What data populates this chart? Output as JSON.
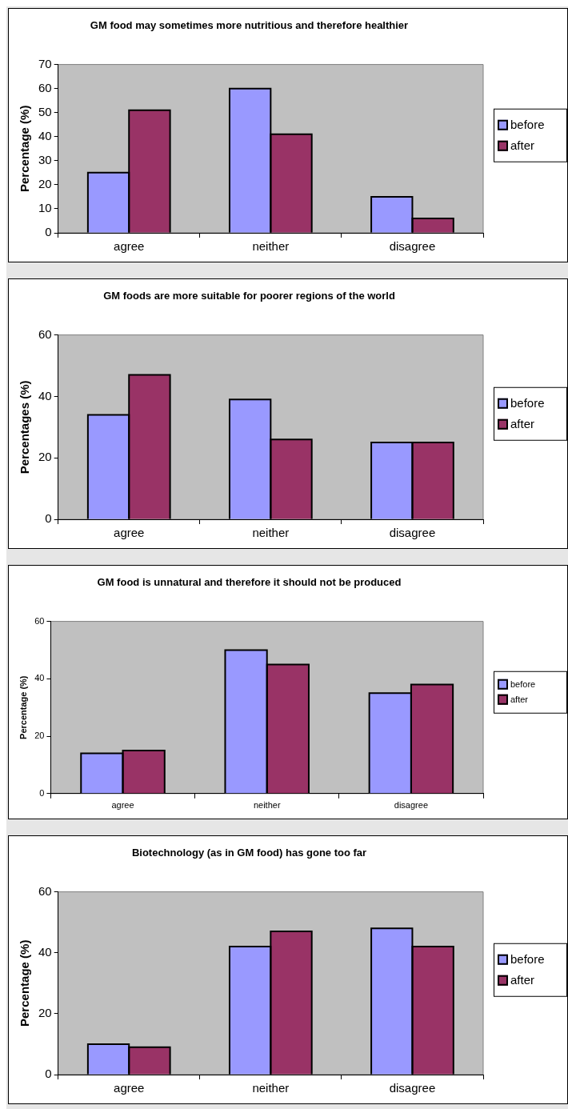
{
  "chart_data": [
    {
      "type": "bar",
      "title": "GM food may sometimes more nutritious and therefore healthier",
      "ylabel": "Percentage (%)",
      "categories": [
        "agree",
        "neither",
        "disagree"
      ],
      "series": [
        {
          "name": "before",
          "color": "#9999ff",
          "values": [
            25,
            60,
            15
          ]
        },
        {
          "name": "after",
          "color": "#993366",
          "values": [
            51,
            41,
            6
          ]
        }
      ],
      "ylim": [
        0,
        70
      ],
      "yticks": [
        0,
        10,
        20,
        30,
        40,
        50,
        60,
        70
      ],
      "grid": false,
      "legend": "right"
    },
    {
      "type": "bar",
      "title": "GM foods are more suitable for poorer regions of the world",
      "ylabel": "Percentages (%)",
      "categories": [
        "agree",
        "neither",
        "disagree"
      ],
      "series": [
        {
          "name": "before",
          "color": "#9999ff",
          "values": [
            34,
            39,
            25
          ]
        },
        {
          "name": "after",
          "color": "#993366",
          "values": [
            47,
            26,
            25
          ]
        }
      ],
      "ylim": [
        0,
        60
      ],
      "yticks": [
        0,
        20,
        40,
        60
      ],
      "grid": false,
      "legend": "right"
    },
    {
      "type": "bar",
      "title": "GM food is unnatural and therefore it should not be produced",
      "ylabel": "Percentage (%)",
      "categories": [
        "agree",
        "neither",
        "disagree"
      ],
      "series": [
        {
          "name": "before",
          "color": "#9999ff",
          "values": [
            14,
            50,
            35
          ]
        },
        {
          "name": "after",
          "color": "#993366",
          "values": [
            15,
            45,
            38
          ]
        }
      ],
      "ylim": [
        0,
        60
      ],
      "yticks": [
        0,
        20,
        40,
        60
      ],
      "grid": false,
      "legend": "right"
    },
    {
      "type": "bar",
      "title": "Biotechnology (as in GM food) has gone too far",
      "ylabel": "Percentage (%)",
      "categories": [
        "agree",
        "neither",
        "disagree"
      ],
      "series": [
        {
          "name": "before",
          "color": "#9999ff",
          "values": [
            10,
            42,
            48
          ]
        },
        {
          "name": "after",
          "color": "#993366",
          "values": [
            9,
            47,
            42
          ]
        }
      ],
      "ylim": [
        0,
        60
      ],
      "yticks": [
        0,
        20,
        40,
        60
      ],
      "grid": false,
      "legend": "right"
    }
  ]
}
